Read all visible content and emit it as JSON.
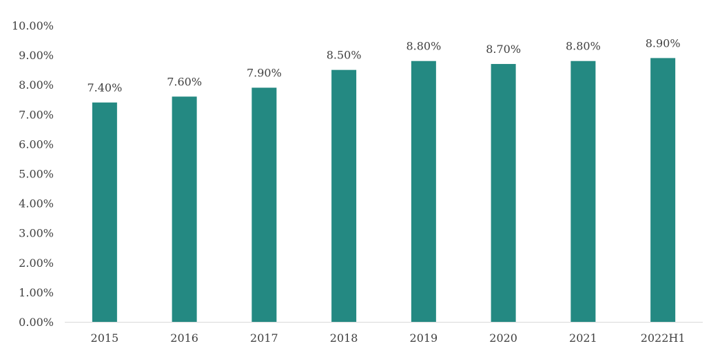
{
  "chart_data": {
    "type": "bar",
    "title": "",
    "xlabel": "",
    "ylabel": "",
    "categories": [
      "2015",
      "2016",
      "2017",
      "2018",
      "2019",
      "2020",
      "2021",
      "2022H1"
    ],
    "values": [
      7.4,
      7.6,
      7.9,
      8.5,
      8.8,
      8.7,
      8.8,
      8.9
    ],
    "data_labels": [
      "7.40%",
      "7.60%",
      "7.90%",
      "8.50%",
      "8.80%",
      "8.70%",
      "8.80%",
      "8.90%"
    ],
    "ylim": [
      0,
      10
    ],
    "yticks": [
      "0.00%",
      "1.00%",
      "2.00%",
      "3.00%",
      "4.00%",
      "5.00%",
      "6.00%",
      "7.00%",
      "8.00%",
      "9.00%",
      "10.00%"
    ],
    "grid": false,
    "legend": "none",
    "colors": {
      "bar": "#248982",
      "axis": "#d9d9d9",
      "text": "#404040"
    }
  }
}
